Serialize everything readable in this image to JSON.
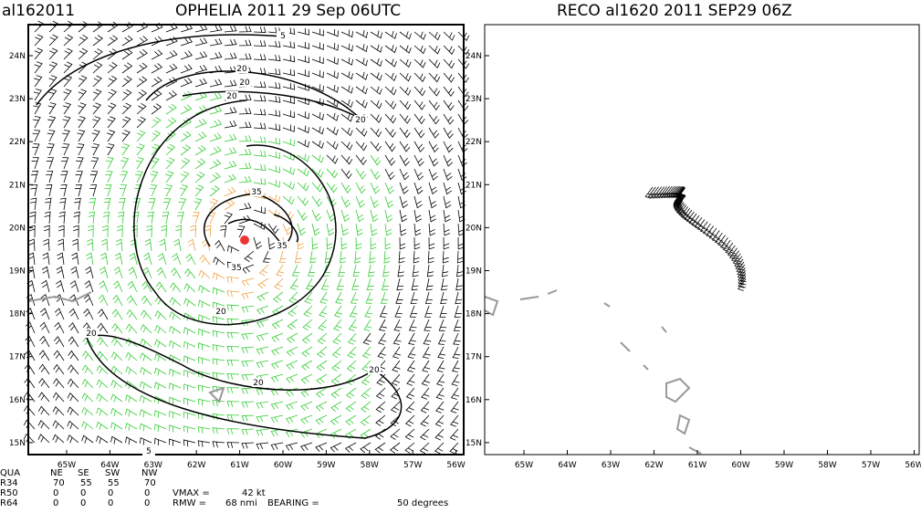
{
  "left_panel": {
    "storm_id": "al162011",
    "title": "OPHELIA 2011 29 Sep 06UTC",
    "lat_labels": [
      "24N",
      "23N",
      "22N",
      "21N",
      "20N",
      "19N",
      "18N",
      "17N",
      "16N",
      "15N"
    ],
    "lon_labels": [
      "65W",
      "64W",
      "63W",
      "62W",
      "61W",
      "60W",
      "59W",
      "58W",
      "57W",
      "56W"
    ],
    "contour_labels": [
      "5",
      "20",
      "20",
      "20",
      "20",
      "20",
      "20",
      "20",
      "20",
      "35",
      "35",
      "35",
      "5"
    ]
  },
  "right_panel": {
    "title": "RECO al1620 2011 SEP29 06Z",
    "lat_labels": [
      "24N",
      "23N",
      "22N",
      "21N",
      "20N",
      "19N",
      "18N",
      "17N",
      "16N",
      "15N"
    ],
    "lon_labels": [
      "65W",
      "64W",
      "63W",
      "62W",
      "61W",
      "60W",
      "59W",
      "58W",
      "57W",
      "56W"
    ]
  },
  "table": {
    "header": [
      "QUA",
      "NE",
      "SE",
      "SW",
      "NW"
    ],
    "rows": [
      [
        "R34",
        "70",
        "55",
        "55",
        "70"
      ],
      [
        "R50",
        "0",
        "0",
        "0",
        "0"
      ],
      [
        "R64",
        "0",
        "0",
        "0",
        "0"
      ]
    ]
  },
  "vmax": {
    "label": "VMAX =",
    "value": "42 kt"
  },
  "rmw": {
    "label": "RMW =",
    "value": "68 nmi",
    "bearing_label": "BEARING =",
    "bearing_value": "50 degrees"
  }
}
